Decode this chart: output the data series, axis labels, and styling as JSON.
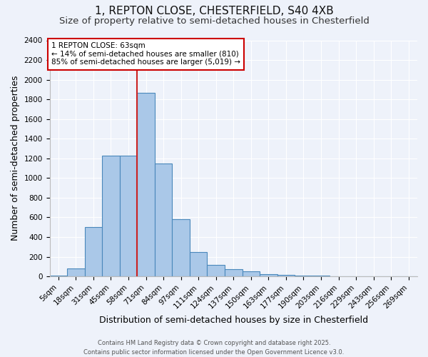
{
  "title1": "1, REPTON CLOSE, CHESTERFIELD, S40 4XB",
  "title2": "Size of property relative to semi-detached houses in Chesterfield",
  "xlabel": "Distribution of semi-detached houses by size in Chesterfield",
  "ylabel": "Number of semi-detached properties",
  "categories": [
    "5sqm",
    "18sqm",
    "31sqm",
    "45sqm",
    "58sqm",
    "71sqm",
    "84sqm",
    "97sqm",
    "111sqm",
    "124sqm",
    "137sqm",
    "150sqm",
    "163sqm",
    "177sqm",
    "190sqm",
    "203sqm",
    "216sqm",
    "229sqm",
    "243sqm",
    "256sqm",
    "269sqm"
  ],
  "values": [
    10,
    80,
    500,
    1230,
    1230,
    1870,
    1150,
    580,
    245,
    120,
    75,
    50,
    20,
    15,
    5,
    10,
    0,
    0,
    0,
    0,
    0
  ],
  "bar_color": "#aac8e8",
  "bar_edge_color": "#4a88bb",
  "red_line_index": 4.5,
  "annotation_text": "1 REPTON CLOSE: 63sqm\n← 14% of semi-detached houses are smaller (810)\n85% of semi-detached houses are larger (5,019) →",
  "annotation_box_color": "#ffffff",
  "annotation_box_edge": "#cc0000",
  "ylim": [
    0,
    2400
  ],
  "yticks": [
    0,
    200,
    400,
    600,
    800,
    1000,
    1200,
    1400,
    1600,
    1800,
    2000,
    2200,
    2400
  ],
  "background_color": "#eef2fa",
  "grid_color": "#ffffff",
  "footer": "Contains HM Land Registry data © Crown copyright and database right 2025.\nContains public sector information licensed under the Open Government Licence v3.0.",
  "title_fontsize": 11,
  "subtitle_fontsize": 9.5,
  "axis_label_fontsize": 9,
  "tick_fontsize": 7.5
}
